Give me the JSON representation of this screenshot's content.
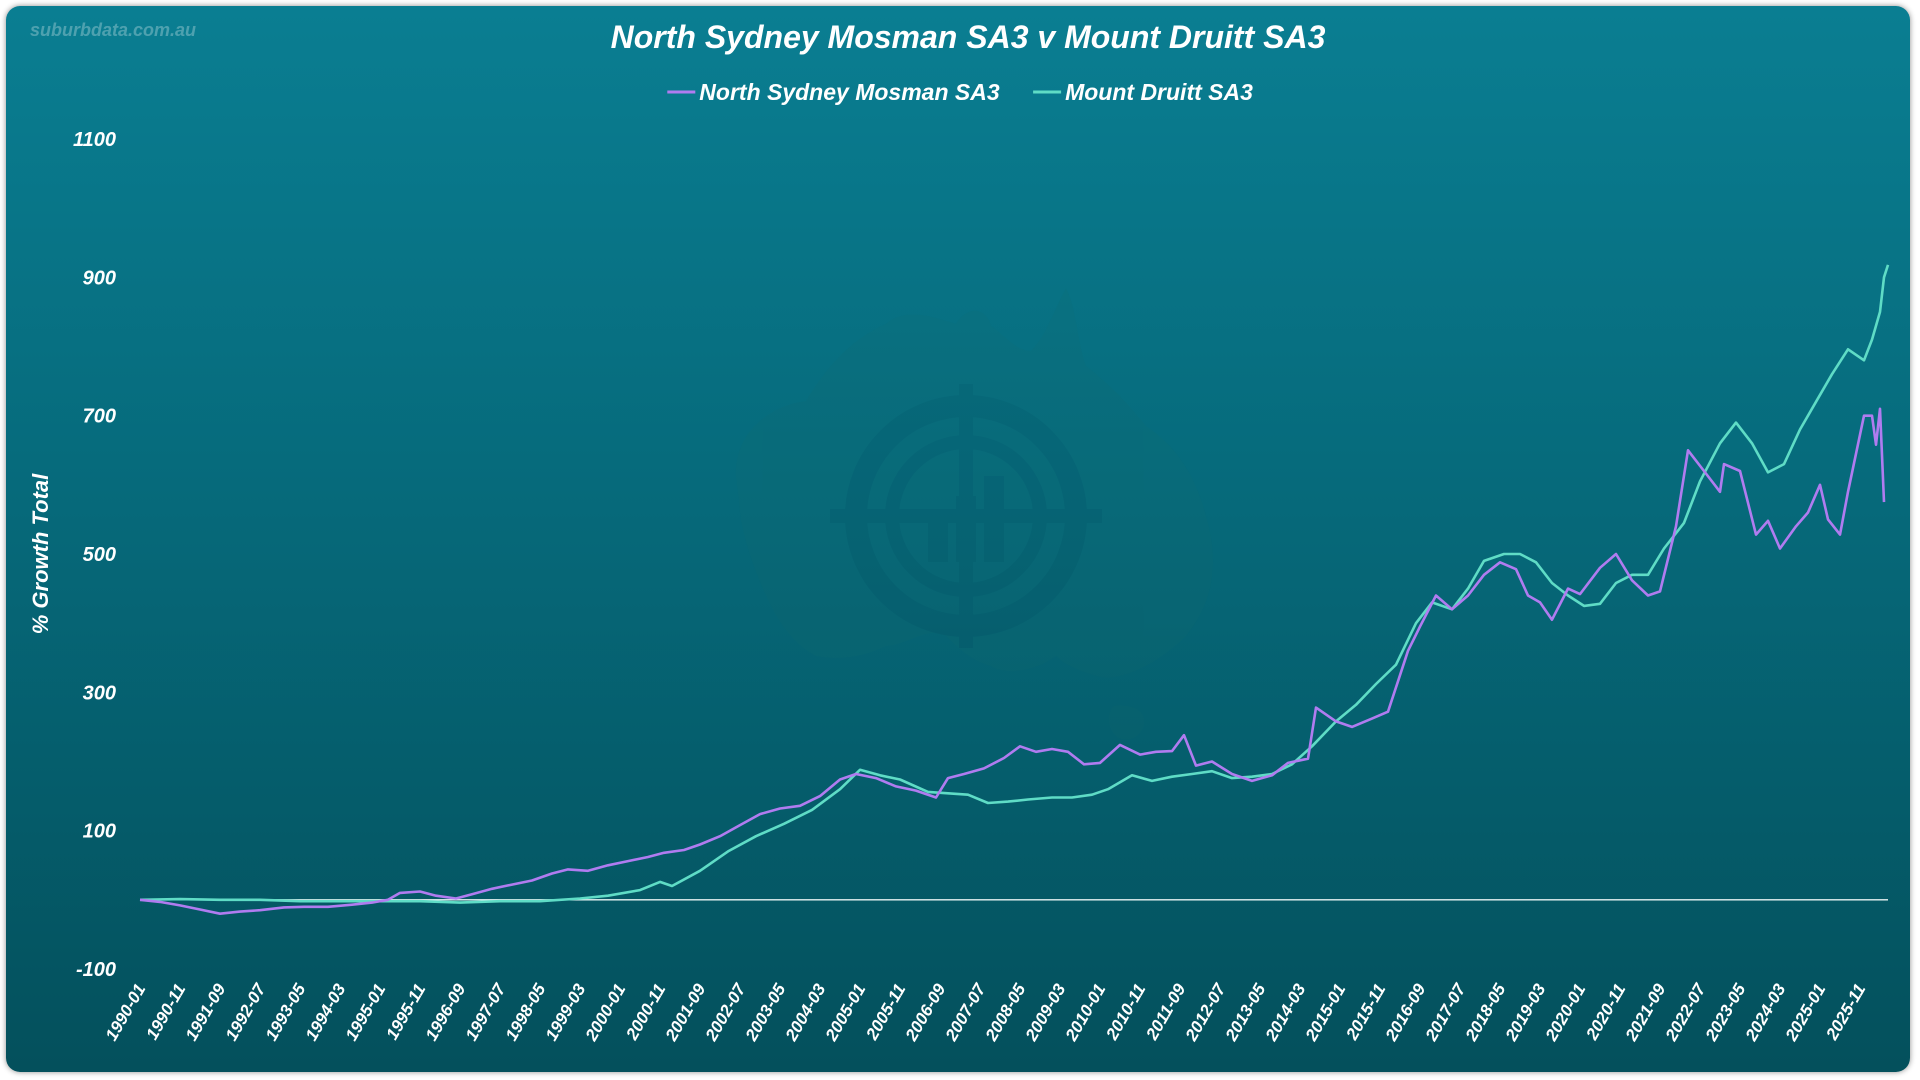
{
  "watermark": "suburbdata.com.au",
  "chart_data": {
    "type": "line",
    "title": "North Sydney Mosman SA3 v Mount Druitt SA3",
    "ylabel": "% Growth Total",
    "xlabel": "",
    "ylim": [
      -100,
      1100
    ],
    "y_ticks": [
      1100,
      900,
      700,
      500,
      300,
      100,
      -100
    ],
    "grid": false,
    "legend_position": "top-center",
    "x_tick_labels": [
      "1990-01",
      "1990-11",
      "1991-09",
      "1992-07",
      "1993-05",
      "1994-03",
      "1995-01",
      "1995-11",
      "1996-09",
      "1997-07",
      "1998-05",
      "1999-03",
      "2000-01",
      "2000-11",
      "2001-09",
      "2002-07",
      "2003-05",
      "2004-03",
      "2005-01",
      "2005-11",
      "2006-09",
      "2007-07",
      "2008-05",
      "2009-03",
      "2010-01",
      "2010-11",
      "2011-09",
      "2012-07",
      "2013-05",
      "2014-03",
      "2015-01",
      "2015-11",
      "2016-09",
      "2017-07",
      "2018-05",
      "2019-03",
      "2020-01",
      "2020-11",
      "2021-09",
      "2022-07",
      "2023-05",
      "2024-03",
      "2025-01",
      "2025-11"
    ],
    "x_range": [
      "1990-01",
      "2026-05"
    ],
    "series": [
      {
        "name": "North Sydney Mosman SA3",
        "color": "#b07cf0",
        "points": [
          [
            "1990-01",
            0
          ],
          [
            "1990-06",
            -3
          ],
          [
            "1990-11",
            -8
          ],
          [
            "1991-04",
            -14
          ],
          [
            "1991-09",
            -20
          ],
          [
            "1992-02",
            -17
          ],
          [
            "1992-07",
            -15
          ],
          [
            "1993-01",
            -11
          ],
          [
            "1993-06",
            -10
          ],
          [
            "1993-12",
            -10
          ],
          [
            "1994-06",
            -7
          ],
          [
            "1994-11",
            -4
          ],
          [
            "1995-03",
            0
          ],
          [
            "1995-06",
            10
          ],
          [
            "1995-11",
            12
          ],
          [
            "1996-03",
            6
          ],
          [
            "1996-08",
            2
          ],
          [
            "1996-12",
            8
          ],
          [
            "1997-05",
            16
          ],
          [
            "1997-10",
            22
          ],
          [
            "1998-03",
            28
          ],
          [
            "1998-08",
            38
          ],
          [
            "1998-12",
            44
          ],
          [
            "1999-05",
            42
          ],
          [
            "1999-10",
            50
          ],
          [
            "2000-03",
            56
          ],
          [
            "2000-08",
            62
          ],
          [
            "2000-12",
            68
          ],
          [
            "2001-05",
            72
          ],
          [
            "2001-09",
            80
          ],
          [
            "2002-02",
            92
          ],
          [
            "2002-07",
            108
          ],
          [
            "2002-12",
            124
          ],
          [
            "2003-05",
            132
          ],
          [
            "2003-10",
            136
          ],
          [
            "2004-03",
            150
          ],
          [
            "2004-08",
            174
          ],
          [
            "2004-12",
            182
          ],
          [
            "2005-05",
            176
          ],
          [
            "2005-10",
            164
          ],
          [
            "2006-03",
            158
          ],
          [
            "2006-08",
            148
          ],
          [
            "2006-11",
            176
          ],
          [
            "2007-03",
            182
          ],
          [
            "2007-08",
            190
          ],
          [
            "2008-01",
            205
          ],
          [
            "2008-05",
            222
          ],
          [
            "2008-09",
            214
          ],
          [
            "2009-01",
            218
          ],
          [
            "2009-05",
            214
          ],
          [
            "2009-09",
            196
          ],
          [
            "2010-01",
            198
          ],
          [
            "2010-06",
            224
          ],
          [
            "2010-11",
            210
          ],
          [
            "2011-03",
            214
          ],
          [
            "2011-07",
            215
          ],
          [
            "2011-10",
            238
          ],
          [
            "2012-01",
            194
          ],
          [
            "2012-05",
            200
          ],
          [
            "2012-10",
            182
          ],
          [
            "2013-03",
            172
          ],
          [
            "2013-08",
            180
          ],
          [
            "2013-12",
            198
          ],
          [
            "2014-05",
            204
          ],
          [
            "2014-07",
            278
          ],
          [
            "2014-12",
            258
          ],
          [
            "2015-04",
            250
          ],
          [
            "2015-09",
            262
          ],
          [
            "2016-01",
            272
          ],
          [
            "2016-06",
            360
          ],
          [
            "2016-09",
            395
          ],
          [
            "2017-01",
            440
          ],
          [
            "2017-05",
            420
          ],
          [
            "2017-09",
            440
          ],
          [
            "2018-01",
            470
          ],
          [
            "2018-05",
            488
          ],
          [
            "2018-09",
            478
          ],
          [
            "2018-12",
            440
          ],
          [
            "2019-03",
            430
          ],
          [
            "2019-06",
            405
          ],
          [
            "2019-10",
            450
          ],
          [
            "2020-01",
            442
          ],
          [
            "2020-06",
            480
          ],
          [
            "2020-10",
            500
          ],
          [
            "2021-02",
            462
          ],
          [
            "2021-06",
            440
          ],
          [
            "2021-09",
            446
          ],
          [
            "2022-01",
            540
          ],
          [
            "2022-04",
            650
          ],
          [
            "2022-08",
            620
          ],
          [
            "2022-12",
            590
          ],
          [
            "2023-01",
            630
          ],
          [
            "2023-05",
            620
          ],
          [
            "2023-09",
            528
          ],
          [
            "2023-12",
            548
          ],
          [
            "2024-03",
            508
          ],
          [
            "2024-07",
            540
          ],
          [
            "2024-10",
            560
          ],
          [
            "2025-01",
            600
          ],
          [
            "2025-03",
            550
          ],
          [
            "2025-06",
            528
          ],
          [
            "2025-08",
            590
          ],
          [
            "2025-12",
            700
          ],
          [
            "2026-02",
            700
          ],
          [
            "2026-03",
            658
          ],
          [
            "2026-04",
            710
          ],
          [
            "2026-05",
            575
          ]
        ]
      },
      {
        "name": "Mount Druitt SA3",
        "color": "#5fdcc6",
        "points": [
          [
            "1990-01",
            0
          ],
          [
            "1990-11",
            1
          ],
          [
            "1991-09",
            0
          ],
          [
            "1992-07",
            0
          ],
          [
            "1993-05",
            -2
          ],
          [
            "1994-03",
            -2
          ],
          [
            "1995-01",
            -2
          ],
          [
            "1995-11",
            -2
          ],
          [
            "1996-09",
            -4
          ],
          [
            "1997-07",
            -2
          ],
          [
            "1998-05",
            -2
          ],
          [
            "1999-03",
            2
          ],
          [
            "1999-10",
            6
          ],
          [
            "2000-06",
            14
          ],
          [
            "2000-11",
            26
          ],
          [
            "2001-02",
            20
          ],
          [
            "2001-09",
            42
          ],
          [
            "2002-04",
            70
          ],
          [
            "2002-11",
            92
          ],
          [
            "2003-06",
            110
          ],
          [
            "2004-01",
            130
          ],
          [
            "2004-08",
            160
          ],
          [
            "2005-01",
            188
          ],
          [
            "2005-06",
            180
          ],
          [
            "2005-11",
            174
          ],
          [
            "2006-06",
            156
          ],
          [
            "2006-11",
            154
          ],
          [
            "2007-04",
            152
          ],
          [
            "2007-09",
            140
          ],
          [
            "2008-02",
            142
          ],
          [
            "2008-07",
            145
          ],
          [
            "2009-01",
            148
          ],
          [
            "2009-06",
            148
          ],
          [
            "2009-11",
            152
          ],
          [
            "2010-03",
            160
          ],
          [
            "2010-09",
            180
          ],
          [
            "2011-02",
            172
          ],
          [
            "2011-07",
            178
          ],
          [
            "2011-12",
            182
          ],
          [
            "2012-05",
            186
          ],
          [
            "2012-10",
            176
          ],
          [
            "2013-03",
            178
          ],
          [
            "2013-08",
            182
          ],
          [
            "2014-01",
            196
          ],
          [
            "2014-06",
            222
          ],
          [
            "2014-12",
            258
          ],
          [
            "2015-05",
            282
          ],
          [
            "2015-10",
            312
          ],
          [
            "2016-03",
            340
          ],
          [
            "2016-08",
            400
          ],
          [
            "2016-12",
            430
          ],
          [
            "2017-05",
            420
          ],
          [
            "2017-09",
            450
          ],
          [
            "2018-01",
            490
          ],
          [
            "2018-06",
            500
          ],
          [
            "2018-10",
            500
          ],
          [
            "2019-02",
            488
          ],
          [
            "2019-06",
            458
          ],
          [
            "2019-10",
            440
          ],
          [
            "2020-02",
            425
          ],
          [
            "2020-06",
            428
          ],
          [
            "2020-10",
            458
          ],
          [
            "2021-02",
            470
          ],
          [
            "2021-06",
            470
          ],
          [
            "2021-10",
            508
          ],
          [
            "2022-03",
            545
          ],
          [
            "2022-07",
            605
          ],
          [
            "2022-12",
            660
          ],
          [
            "2023-04",
            690
          ],
          [
            "2023-08",
            660
          ],
          [
            "2023-12",
            618
          ],
          [
            "2024-04",
            630
          ],
          [
            "2024-08",
            680
          ],
          [
            "2024-12",
            720
          ],
          [
            "2025-04",
            760
          ],
          [
            "2025-08",
            796
          ],
          [
            "2025-12",
            780
          ],
          [
            "2026-02",
            810
          ],
          [
            "2026-04",
            850
          ],
          [
            "2026-05",
            900
          ],
          [
            "2026-06",
            918
          ]
        ]
      }
    ]
  }
}
